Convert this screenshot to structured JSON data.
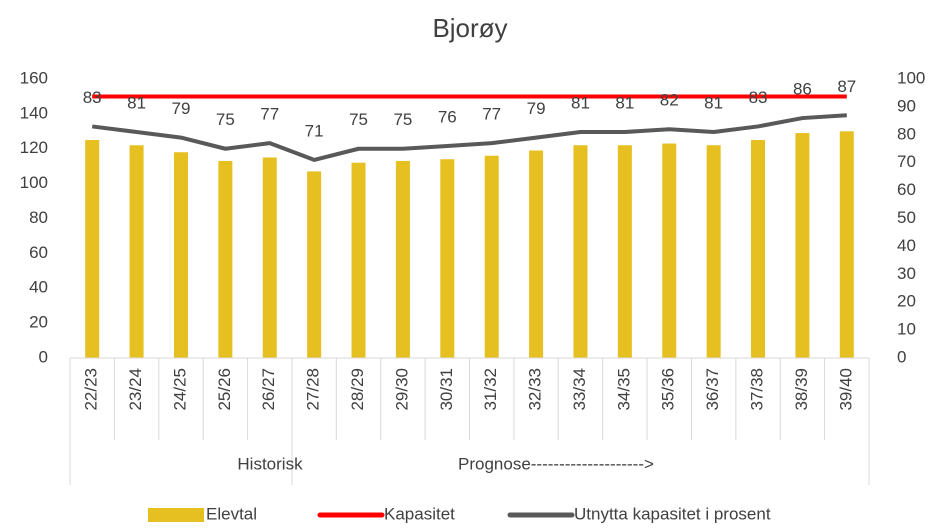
{
  "chart_data": {
    "type": "bar_line",
    "title": "Bjorøy",
    "categories": [
      "22/23",
      "23/24",
      "24/25",
      "25/26",
      "26/27",
      "27/28",
      "28/29",
      "29/30",
      "30/31",
      "31/32",
      "32/33",
      "33/34",
      "34/35",
      "35/36",
      "36/37",
      "37/38",
      "38/39",
      "39/40"
    ],
    "groups": [
      "Historisk",
      "Prognose-------------------->"
    ],
    "series": [
      {
        "name": "Elevtal",
        "type": "bar",
        "color": "#e6c020",
        "values": [
          125,
          122,
          118,
          113,
          115,
          107,
          112,
          113,
          114,
          116,
          119,
          122,
          122,
          123,
          122,
          125,
          129,
          130
        ]
      },
      {
        "name": "Kapasitet",
        "type": "line",
        "color": "#ff0000",
        "values": [
          150,
          150,
          150,
          150,
          150,
          150,
          150,
          150,
          150,
          150,
          150,
          150,
          150,
          150,
          150,
          150,
          150,
          150
        ]
      },
      {
        "name": "Utnytta kapasitet i prosent",
        "type": "line",
        "axis": "y2",
        "color": "#595959",
        "values": [
          83,
          81,
          79,
          75,
          77,
          71,
          75,
          75,
          76,
          77,
          79,
          81,
          81,
          82,
          81,
          83,
          86,
          87
        ],
        "show_labels": true
      }
    ],
    "ylim": [
      0,
      160
    ],
    "yticks": [
      0,
      20,
      40,
      60,
      80,
      100,
      120,
      140,
      160
    ],
    "y2lim": [
      0,
      100
    ],
    "y2ticks": [
      0,
      10,
      20,
      30,
      40,
      50,
      60,
      70,
      80,
      90,
      100
    ],
    "grid": false,
    "legend": "bottom"
  }
}
